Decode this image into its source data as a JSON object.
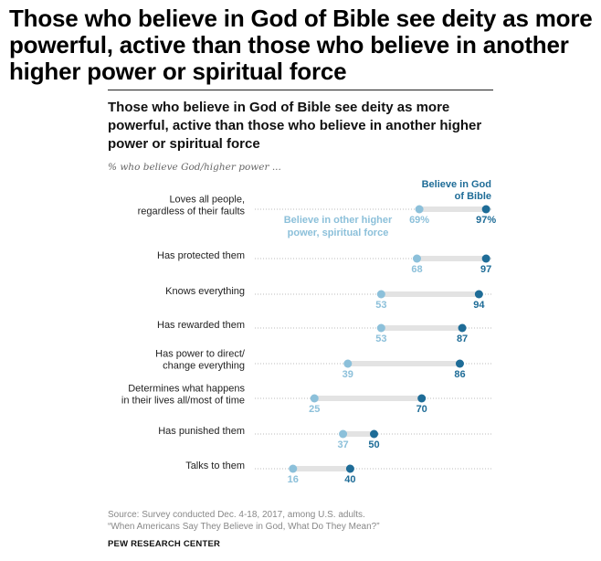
{
  "headline": "Those who believe in God of Bible see deity as more powerful, active than those who believe in another higher power or spiritual force",
  "subtitle": "Those who believe in God of Bible see deity as more powerful, active than those who believe in another higher power or spiritual force",
  "caption": "% who believe God/higher power ...",
  "source": {
    "line1": "Source: Survey conducted Dec. 4-18, 2017, among U.S. adults.",
    "line2": "“When Americans Say They Believe in God, What Do They Mean?”"
  },
  "credit": "PEW RESEARCH CENTER",
  "colors": {
    "bible": "#1e6c97",
    "other": "#8cc0da",
    "connector": "#e3e3e3",
    "dotted": "#bbbbbb"
  },
  "chart_data": {
    "type": "dot-plot",
    "title": "Those who believe in God of Bible see deity as more powerful, active than those who believe in another higher power or spiritual force",
    "xlabel": "% who believe God/higher power ...",
    "xlim": [
      0,
      100
    ],
    "grid": false,
    "legend": {
      "bible_lines": [
        "Believe in God",
        "of Bible"
      ],
      "other_lines": [
        "Believe in other higher",
        "power, spiritual force"
      ]
    },
    "categories": [
      {
        "lines": [
          "Loves all people,",
          "regardless of their faults"
        ],
        "other": 69,
        "bible": 97,
        "other_label": "69%",
        "bible_label": "97%"
      },
      {
        "lines": [
          "Has protected them"
        ],
        "other": 68,
        "bible": 97,
        "other_label": "68",
        "bible_label": "97"
      },
      {
        "lines": [
          "Knows everything"
        ],
        "other": 53,
        "bible": 94,
        "other_label": "53",
        "bible_label": "94"
      },
      {
        "lines": [
          "Has rewarded them"
        ],
        "other": 53,
        "bible": 87,
        "other_label": "53",
        "bible_label": "87"
      },
      {
        "lines": [
          "Has power to direct/",
          "change everything"
        ],
        "other": 39,
        "bible": 86,
        "other_label": "39",
        "bible_label": "86"
      },
      {
        "lines": [
          "Determines what happens",
          "in their lives all/most of time"
        ],
        "other": 25,
        "bible": 70,
        "other_label": "25",
        "bible_label": "70"
      },
      {
        "lines": [
          "Has punished them"
        ],
        "other": 37,
        "bible": 50,
        "other_label": "37",
        "bible_label": "50"
      },
      {
        "lines": [
          "Talks to them"
        ],
        "other": 16,
        "bible": 40,
        "other_label": "16",
        "bible_label": "40"
      }
    ],
    "series": [
      {
        "name": "Believe in God of Bible",
        "values": [
          97,
          97,
          94,
          87,
          86,
          70,
          50,
          40
        ]
      },
      {
        "name": "Believe in other higher power, spiritual force",
        "values": [
          69,
          68,
          53,
          53,
          39,
          25,
          37,
          16
        ]
      }
    ]
  }
}
